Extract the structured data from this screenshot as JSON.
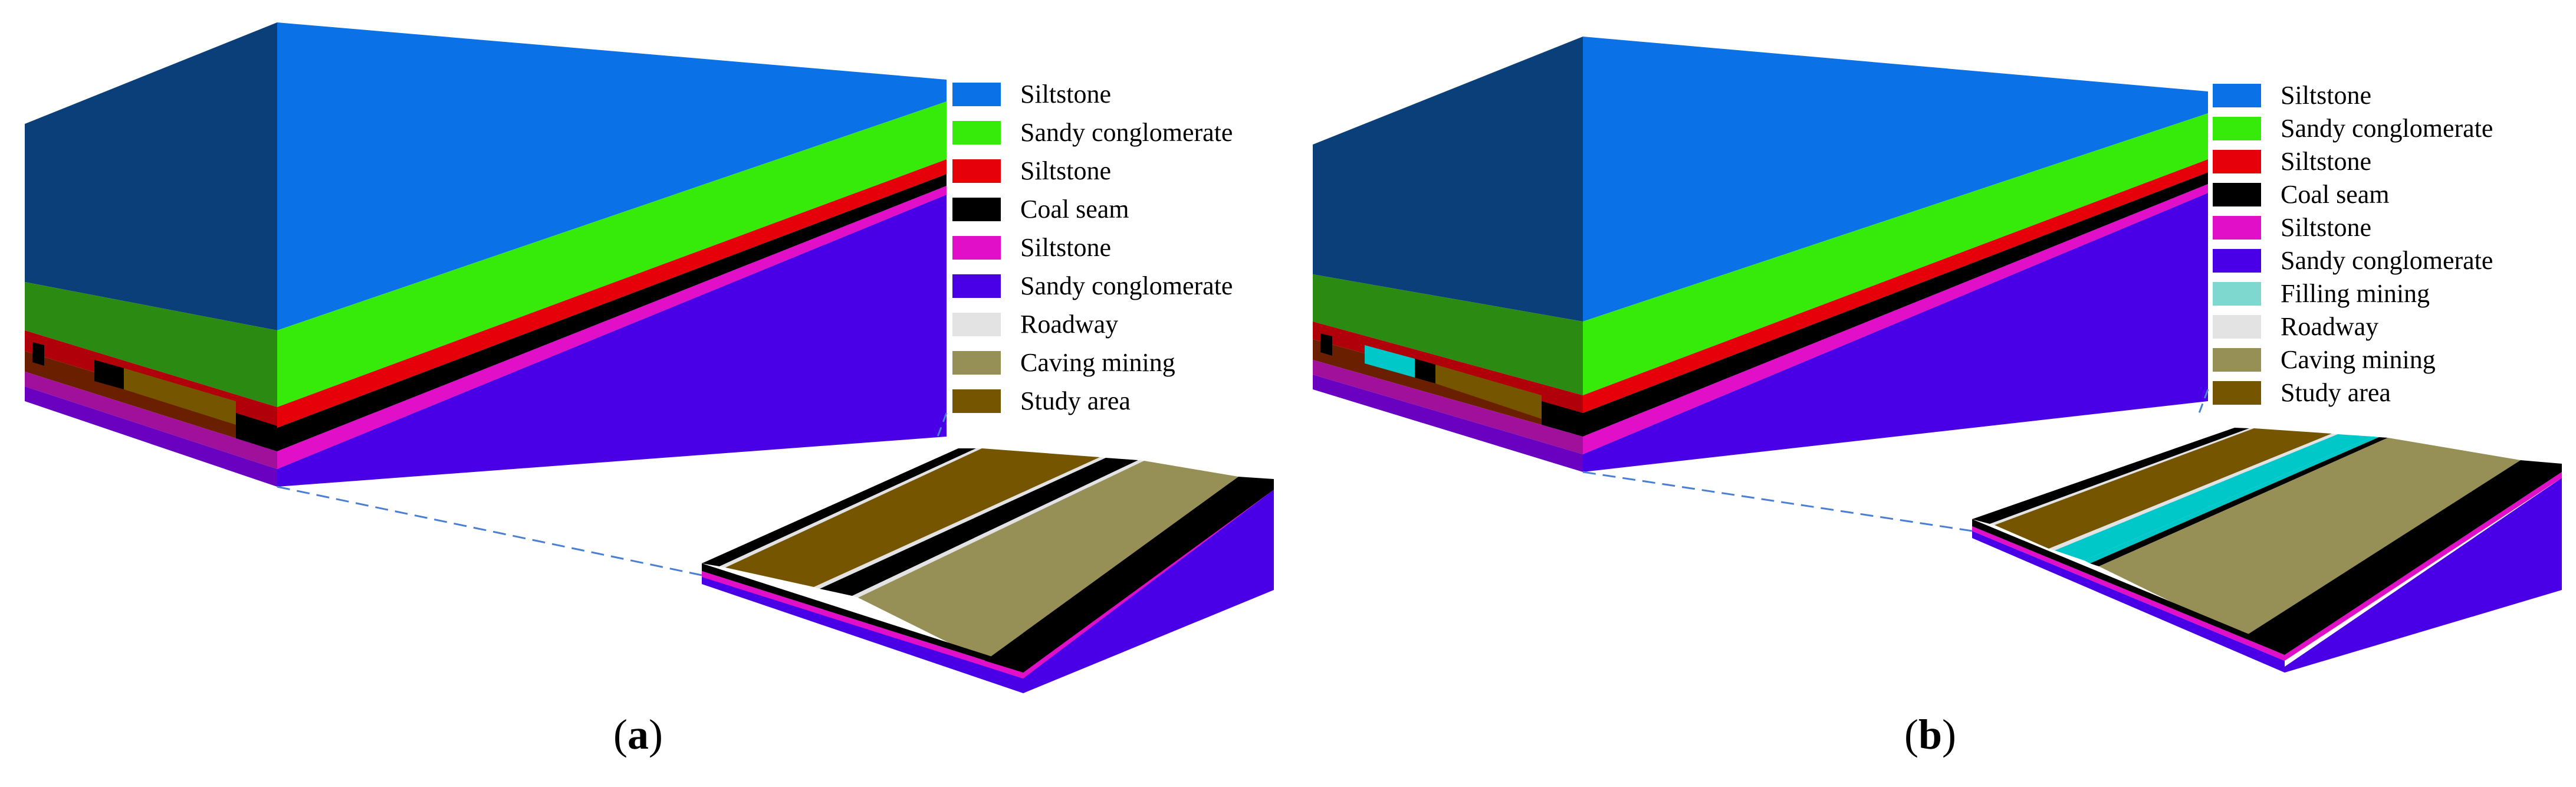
{
  "colors": {
    "siltstone_blue": "#0A72E6",
    "siltstone_blue_side": "#0A3F7A",
    "sandy_conglomerate_green": "#36EB0A",
    "sandy_conglomerate_green_side": "#2A8A12",
    "siltstone_red": "#E6000A",
    "coal_seam_black": "#000000",
    "siltstone_magenta": "#E20FC8",
    "sandy_conglomerate_purple": "#4A00E6",
    "roadway_gray": "#E3E3E3",
    "caving_mining_olive": "#968F56",
    "study_area_brown": "#765501",
    "filling_mining_cyan": "#00C8C8",
    "filling_mining_swatch": "#7ED8D0",
    "leader_line": "#4A7FD4"
  },
  "panels": [
    {
      "id": "a",
      "caption_letter": "a",
      "legend": [
        {
          "label": "Siltstone",
          "color": "#0A72E6"
        },
        {
          "label": "Sandy conglomerate",
          "color": "#36EB0A"
        },
        {
          "label": "Siltstone",
          "color": "#E6000A"
        },
        {
          "label": "Coal seam",
          "color": "#000000"
        },
        {
          "label": "Siltstone",
          "color": "#E20FC8"
        },
        {
          "label": "Sandy conglomerate",
          "color": "#4A00E6"
        },
        {
          "label": "Roadway",
          "color": "#E3E3E3"
        },
        {
          "label": "Caving mining",
          "color": "#968F56"
        },
        {
          "label": "Study area",
          "color": "#765501"
        }
      ]
    },
    {
      "id": "b",
      "caption_letter": "b",
      "legend": [
        {
          "label": "Siltstone",
          "color": "#0A72E6"
        },
        {
          "label": "Sandy conglomerate",
          "color": "#36EB0A"
        },
        {
          "label": "Siltstone",
          "color": "#E6000A"
        },
        {
          "label": "Coal seam",
          "color": "#000000"
        },
        {
          "label": "Siltstone",
          "color": "#E20FC8"
        },
        {
          "label": "Sandy conglomerate",
          "color": "#4A00E6"
        },
        {
          "label": "Filling mining",
          "color": "#7ED8D0"
        },
        {
          "label": "Roadway",
          "color": "#E3E3E3"
        },
        {
          "label": "Caving mining",
          "color": "#968F56"
        },
        {
          "label": "Study area",
          "color": "#765501"
        }
      ]
    }
  ]
}
